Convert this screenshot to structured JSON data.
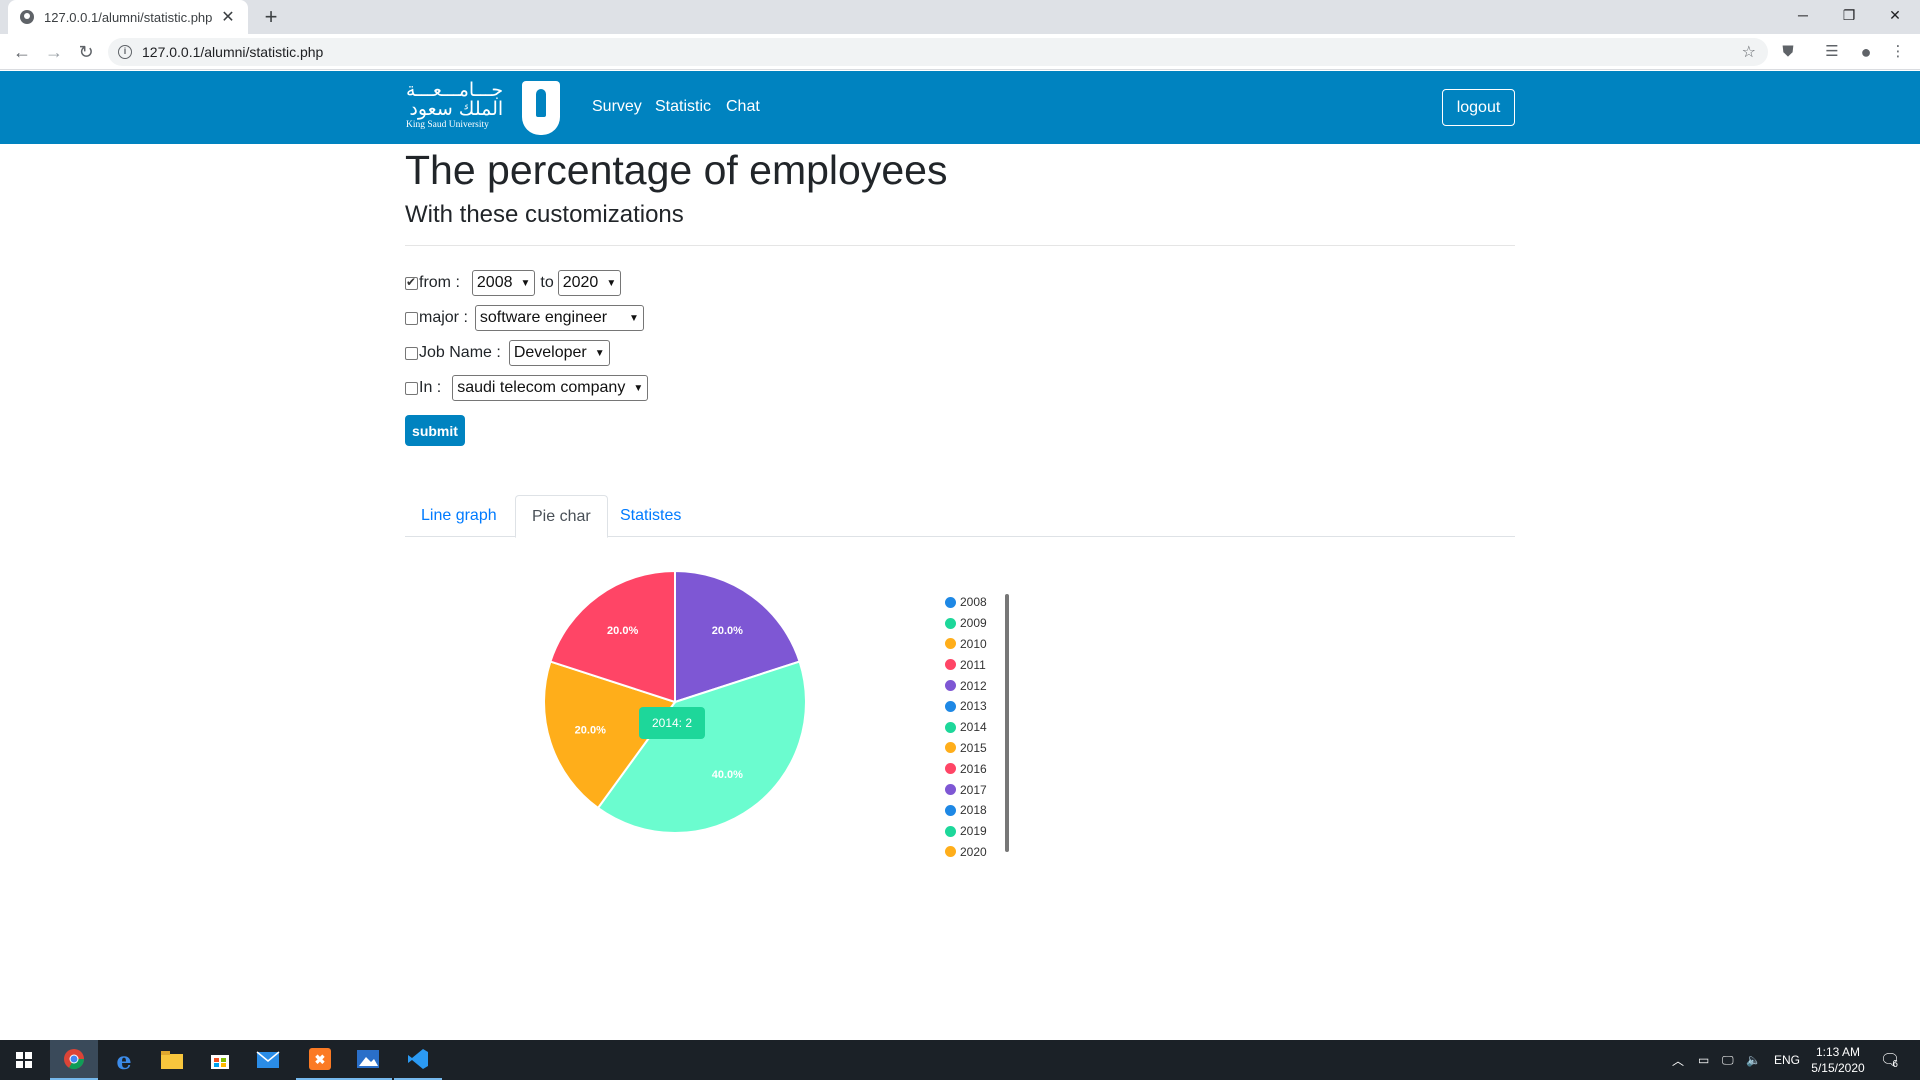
{
  "browser": {
    "tab_title": "127.0.0.1/alumni/statistic.php",
    "url": "127.0.0.1/alumni/statistic.php"
  },
  "site": {
    "logo_arabic_line1": "جـــامـــعـــة",
    "logo_arabic_line2": "الملك سعود",
    "logo_english": "King Saud University",
    "nav": [
      "Survey",
      "Statistic",
      "Chat"
    ],
    "logout_label": "logout"
  },
  "page": {
    "title": "The percentage of employees",
    "subtitle": "With these customizations"
  },
  "filters": {
    "from_label": "from :",
    "from_checked": true,
    "from_value": "2008",
    "to_label": "to",
    "to_value": "2020",
    "major_label": "major :",
    "major_checked": false,
    "major_value": "software engineer",
    "job_label": "Job Name :",
    "job_checked": false,
    "job_value": "Developer",
    "in_label": "In :",
    "in_checked": false,
    "in_value": "saudi telecom company",
    "submit_label": "submit"
  },
  "tabs": [
    {
      "label": "Line graph",
      "active": false
    },
    {
      "label": "Pie char",
      "active": true
    },
    {
      "label": "Statistes",
      "active": false
    }
  ],
  "chart_data": {
    "type": "pie",
    "slices": [
      {
        "label": "2012",
        "value": 20.0,
        "display": "20.0%",
        "color": "#7e57d4"
      },
      {
        "label": "2014",
        "value": 40.0,
        "display": "40.0%",
        "color": "#6bfccf"
      },
      {
        "label": "2015",
        "value": 20.0,
        "display": "20.0%",
        "color": "#ffae1a"
      },
      {
        "label": "2016",
        "value": 20.0,
        "display": "20.0%",
        "color": "#ff4566"
      }
    ],
    "tooltip": {
      "label": "2014",
      "value": "2",
      "text": "2014:  2",
      "color": "#1dd79a"
    },
    "legend": [
      {
        "label": "2008",
        "color": "#1e88e5"
      },
      {
        "label": "2009",
        "color": "#1dd79a"
      },
      {
        "label": "2010",
        "color": "#ffae1a"
      },
      {
        "label": "2011",
        "color": "#ff4566"
      },
      {
        "label": "2012",
        "color": "#7e57d4"
      },
      {
        "label": "2013",
        "color": "#1e88e5"
      },
      {
        "label": "2014",
        "color": "#1dd79a"
      },
      {
        "label": "2015",
        "color": "#ffae1a"
      },
      {
        "label": "2016",
        "color": "#ff4566"
      },
      {
        "label": "2017",
        "color": "#7e57d4"
      },
      {
        "label": "2018",
        "color": "#1e88e5"
      },
      {
        "label": "2019",
        "color": "#1dd79a"
      },
      {
        "label": "2020",
        "color": "#ffae1a"
      }
    ],
    "legend_placement": "right"
  },
  "taskbar": {
    "language": "ENG",
    "time": "1:13 AM",
    "date": "5/15/2020",
    "notification_count": "6"
  }
}
